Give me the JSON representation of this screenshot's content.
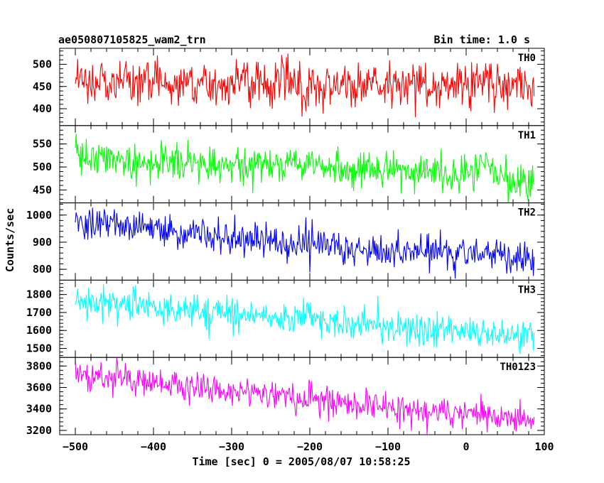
{
  "header": {
    "title": "ae050807105825_wam2_trn",
    "bin_time": "Bin time: 1.0 s"
  },
  "chart_data": {
    "type": "line",
    "title": "ae050807105825_wam2_trn",
    "subtitle": "Bin time: 1.0 s",
    "xlabel": "Time [sec] 0 = 2005/08/07 10:58:25",
    "ylabel": "Counts/sec",
    "xlim": [
      -520,
      100
    ],
    "x_ticks": [
      -500,
      -400,
      -300,
      -200,
      -100,
      0,
      100
    ],
    "x_start": -500,
    "x_end": 87,
    "x_step": 1,
    "grid": false,
    "panels": [
      {
        "name": "TH0",
        "color": "#ff0000",
        "ylim": [
          362,
          536
        ],
        "yticks": [
          400,
          450,
          500
        ],
        "trend": [
          [
            -500,
            462
          ],
          [
            -300,
            455
          ],
          [
            -100,
            452
          ],
          [
            0,
            455
          ],
          [
            20,
            465
          ],
          [
            87,
            450
          ]
        ],
        "noise_sd": 26
      },
      {
        "name": "TH1",
        "color": "#00ff00",
        "ylim": [
          422,
          590
        ],
        "yticks": [
          450,
          500,
          550
        ],
        "trend": [
          [
            -500,
            528
          ],
          [
            -400,
            512
          ],
          [
            -200,
            500
          ],
          [
            -50,
            488
          ],
          [
            10,
            482
          ],
          [
            20,
            520
          ],
          [
            35,
            480
          ],
          [
            87,
            465
          ]
        ],
        "noise_sd": 20
      },
      {
        "name": "TH2",
        "color": "#0000ff",
        "ylim": [
          760,
          1045
        ],
        "yticks": [
          800,
          900,
          1000
        ],
        "trend": [
          [
            -500,
            975
          ],
          [
            -400,
            950
          ],
          [
            -300,
            915
          ],
          [
            -200,
            890
          ],
          [
            -100,
            868
          ],
          [
            0,
            860
          ],
          [
            87,
            835
          ]
        ],
        "noise_sd": 30
      },
      {
        "name": "TH3",
        "color": "#00ffff",
        "ylim": [
          1450,
          1880
        ],
        "yticks": [
          1500,
          1600,
          1700,
          1800
        ],
        "trend": [
          [
            -500,
            1760
          ],
          [
            -400,
            1730
          ],
          [
            -300,
            1695
          ],
          [
            -200,
            1660
          ],
          [
            -100,
            1620
          ],
          [
            0,
            1600
          ],
          [
            87,
            1560
          ]
        ],
        "noise_sd": 45
      },
      {
        "name": "TH0123",
        "color": "#ff00ff",
        "ylim": [
          3160,
          3880
        ],
        "yticks": [
          3200,
          3400,
          3600,
          3800
        ],
        "trend": [
          [
            -500,
            3720
          ],
          [
            -400,
            3650
          ],
          [
            -300,
            3570
          ],
          [
            -200,
            3500
          ],
          [
            -100,
            3400
          ],
          [
            0,
            3360
          ],
          [
            20,
            3420
          ],
          [
            35,
            3330
          ],
          [
            87,
            3280
          ]
        ],
        "noise_sd": 70
      }
    ]
  }
}
